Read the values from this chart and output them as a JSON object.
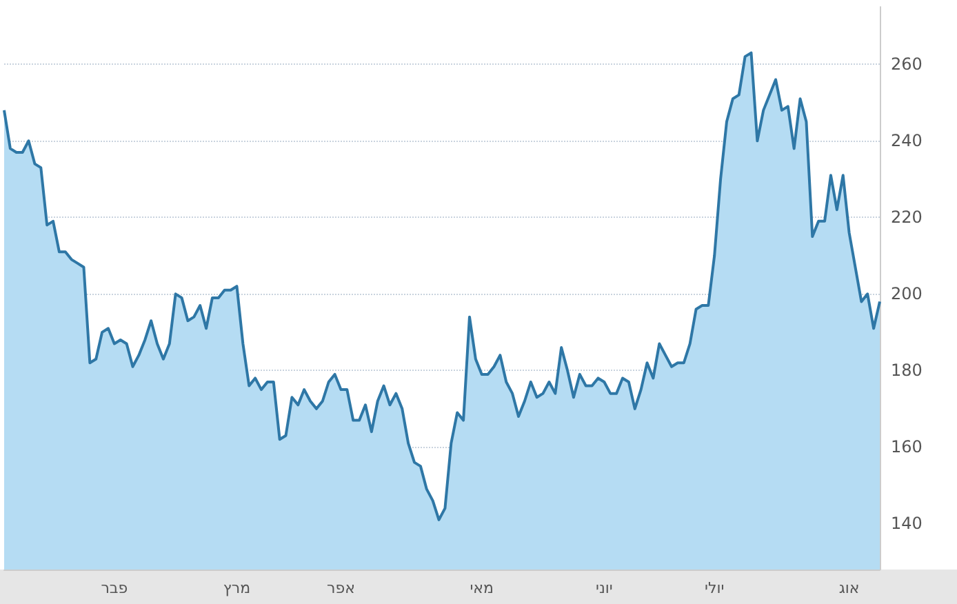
{
  "chart_data": {
    "type": "area",
    "categories": [
      null,
      null,
      null,
      null,
      null,
      null,
      null,
      null,
      null,
      null,
      null,
      null,
      null,
      null,
      null,
      null,
      null,
      null,
      "פבר",
      null,
      null,
      null,
      null,
      null,
      null,
      null,
      null,
      null,
      null,
      null,
      null,
      null,
      null,
      null,
      null,
      null,
      null,
      null,
      "מרץ",
      null,
      null,
      null,
      null,
      null,
      null,
      null,
      null,
      null,
      null,
      null,
      null,
      null,
      null,
      null,
      null,
      "אפר",
      null,
      null,
      null,
      null,
      null,
      null,
      null,
      null,
      null,
      null,
      null,
      null,
      null,
      null,
      null,
      null,
      null,
      null,
      null,
      null,
      null,
      null,
      "מאי",
      null,
      null,
      null,
      null,
      null,
      null,
      null,
      null,
      null,
      null,
      null,
      null,
      null,
      null,
      null,
      null,
      null,
      null,
      null,
      "יוני",
      null,
      null,
      null,
      null,
      null,
      null,
      null,
      null,
      null,
      null,
      null,
      null,
      null,
      null,
      null,
      null,
      null,
      "יולי",
      null,
      null,
      null,
      null,
      null,
      null,
      null,
      null,
      null,
      null,
      null,
      null,
      null,
      null,
      null,
      null,
      null,
      null,
      null,
      null,
      null,
      "אוג",
      null,
      null,
      null,
      null,
      null
    ],
    "series": [
      {
        "color": "#2e77a6",
        "values": [
          248,
          238,
          237,
          237,
          240,
          234,
          233,
          218,
          219,
          211,
          211,
          209,
          208,
          207,
          182,
          183,
          190,
          191,
          187,
          188,
          187,
          181,
          184,
          188,
          193,
          187,
          183,
          187,
          200,
          199,
          193,
          194,
          197,
          191,
          199,
          199,
          201,
          201,
          202,
          187,
          176,
          178,
          175,
          177,
          177,
          162,
          163,
          173,
          171,
          175,
          172,
          170,
          172,
          177,
          179,
          175,
          175,
          167,
          167,
          171,
          164,
          172,
          176,
          171,
          174,
          170,
          161,
          156,
          155,
          149,
          146,
          141,
          144,
          161,
          169,
          167,
          194,
          183,
          179,
          179,
          181,
          184,
          177,
          174,
          168,
          172,
          177,
          173,
          174,
          177,
          174,
          186,
          180,
          173,
          179,
          176,
          176,
          178,
          177,
          174,
          174,
          178,
          177,
          170,
          175,
          182,
          178,
          187,
          184,
          181,
          182,
          182,
          187,
          196,
          197,
          197,
          210,
          230,
          245,
          251,
          252,
          262,
          263,
          240,
          248,
          252,
          256,
          248,
          249,
          238,
          251,
          245,
          215,
          219,
          219,
          231,
          222,
          231,
          216,
          207,
          198,
          200,
          191,
          198
        ]
      }
    ],
    "ylim": [
      128,
      275
    ],
    "yticks": [
      140,
      160,
      180,
      200,
      220,
      240,
      260
    ],
    "grid": "y",
    "marker": "none"
  }
}
